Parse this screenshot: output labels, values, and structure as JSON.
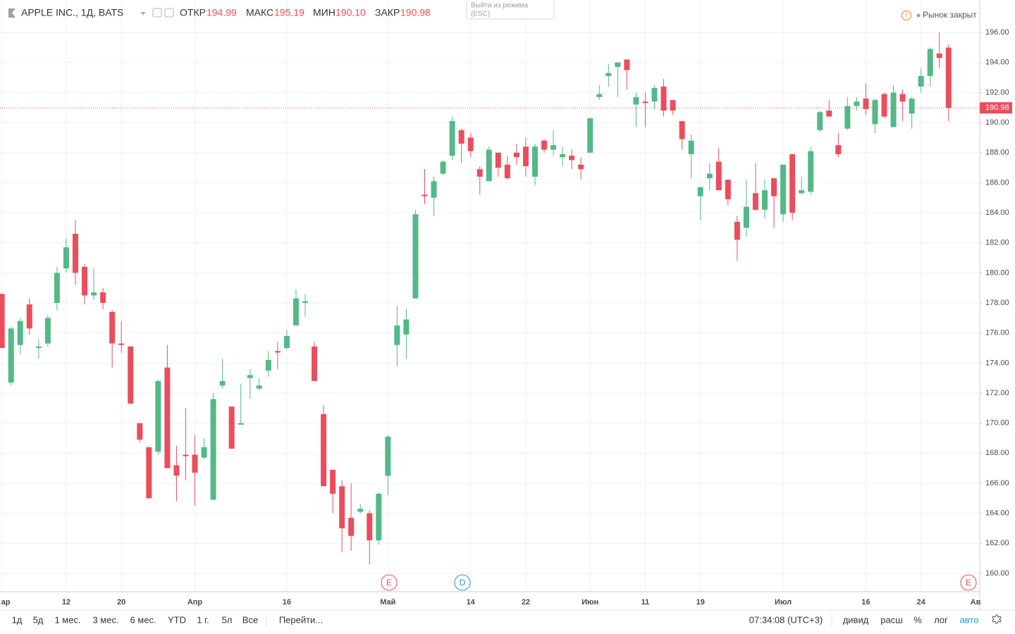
{
  "header": {
    "symbol": "APPLE INC., 1Д, BATS",
    "ohlc": [
      {
        "label": "ОТКР",
        "value": "194.99"
      },
      {
        "label": "МАКС",
        "value": "195.19"
      },
      {
        "label": "МИН",
        "value": "190.10"
      },
      {
        "label": "ЗАКР",
        "value": "190.98"
      }
    ],
    "tooltip": [
      "Выйти из режима",
      "(ESC)"
    ],
    "market_status": "Рынок закрыт"
  },
  "toolbar": {
    "ranges": [
      "1д",
      "5д",
      "1 мес.",
      "3 мес.",
      "6 мес.",
      "YTD",
      "1 г.",
      "5л",
      "Все",
      "Перейти..."
    ],
    "time": "07:34:08 (UTC+3)",
    "options": [
      "дивид",
      "расш",
      "%",
      "лог",
      "авто"
    ]
  },
  "chart_data": {
    "type": "candlestick",
    "up_color": "#53b987",
    "down_color": "#eb4d5c",
    "grid": true,
    "categories": [
      "ар",
      null,
      null,
      null,
      null,
      null,
      null,
      "12",
      null,
      null,
      null,
      null,
      null,
      "20",
      null,
      null,
      null,
      null,
      null,
      null,
      null,
      "Апр",
      null,
      null,
      null,
      null,
      null,
      null,
      null,
      null,
      null,
      "16",
      null,
      null,
      null,
      null,
      null,
      null,
      null,
      null,
      null,
      null,
      "Май",
      null,
      null,
      null,
      null,
      null,
      null,
      null,
      null,
      "14",
      null,
      null,
      null,
      null,
      null,
      "22",
      null,
      null,
      null,
      null,
      null,
      null,
      "Июн",
      null,
      null,
      null,
      null,
      null,
      "11",
      null,
      null,
      null,
      null,
      null,
      "19",
      null,
      null,
      null,
      null,
      null,
      null,
      null,
      null,
      "Июл",
      null,
      null,
      null,
      null,
      null,
      null,
      null,
      null,
      "16",
      null,
      null,
      null,
      null,
      null,
      "24",
      null,
      null,
      null
    ],
    "x_end_label": "Ав",
    "open": [
      178.6,
      172.7,
      175.2,
      177.9,
      175.0,
      175.3,
      178.0,
      180.3,
      182.6,
      180.4,
      178.5,
      178.7,
      177.4,
      175.3,
      175.1,
      170.0,
      168.4,
      168.1,
      173.7,
      167.2,
      167.9,
      167.9,
      167.7,
      164.9,
      172.5,
      171.1,
      169.9,
      173.0,
      172.3,
      173.5,
      174.8,
      175.0,
      176.5,
      178.0,
      175.1,
      170.6,
      166.9,
      165.8,
      163.7,
      164.1,
      164.0,
      162.2,
      166.5,
      175.2,
      175.9,
      178.3,
      185.2,
      185.0,
      186.6,
      187.8,
      189.5,
      189.0,
      186.9,
      186.1,
      188.0,
      187.2,
      188.0,
      188.4,
      186.4,
      188.8,
      188.2,
      187.7,
      187.8,
      187.2,
      188.0,
      191.7,
      193.1,
      193.7,
      194.2,
      191.2,
      191.4,
      191.4,
      192.4,
      191.5,
      190.1,
      187.9,
      185.1,
      186.3,
      187.4,
      186.2,
      183.4,
      183.0,
      185.3,
      184.2,
      186.3,
      183.9,
      187.9,
      185.3,
      185.4,
      189.5,
      190.8,
      188.5,
      189.6,
      191.1,
      191.6,
      189.9,
      191.9,
      189.7,
      191.9,
      190.6,
      192.4,
      193.1,
      194.6,
      194.99
    ],
    "high": [
      178.6,
      176.4,
      177.0,
      178.3,
      175.6,
      177.2,
      180.4,
      182.3,
      183.5,
      180.6,
      180.3,
      179.0,
      177.5,
      176.8,
      175.1,
      170.0,
      168.4,
      172.9,
      175.2,
      168.5,
      171.0,
      169.2,
      169.0,
      172.0,
      174.3,
      171.1,
      172.6,
      173.6,
      173.0,
      174.8,
      175.4,
      176.2,
      178.9,
      178.6,
      175.4,
      171.2,
      166.9,
      166.2,
      166.0,
      164.6,
      164.2,
      165.4,
      169.2,
      177.8,
      177.6,
      184.2,
      186.9,
      186.4,
      187.5,
      190.4,
      189.6,
      189.3,
      187.1,
      188.4,
      188.0,
      187.8,
      188.6,
      189.0,
      188.6,
      188.9,
      189.5,
      188.4,
      188.2,
      187.7,
      190.3,
      192.5,
      193.9,
      194.0,
      194.2,
      192.0,
      192.0,
      192.5,
      192.9,
      191.5,
      190.1,
      189.2,
      185.7,
      187.3,
      188.3,
      186.2,
      183.8,
      186.2,
      187.3,
      186.2,
      186.3,
      187.2,
      187.9,
      186.4,
      188.4,
      190.8,
      191.5,
      189.3,
      191.7,
      191.7,
      192.6,
      191.6,
      192.0,
      192.5,
      192.2,
      191.7,
      193.6,
      195.0,
      196.0,
      195.19
    ],
    "low": [
      175.0,
      172.5,
      174.6,
      175.9,
      174.3,
      175.1,
      177.5,
      180.0,
      179.2,
      177.9,
      178.2,
      177.6,
      173.7,
      174.7,
      171.3,
      168.7,
      165.0,
      167.9,
      167.0,
      164.8,
      166.2,
      164.5,
      167.6,
      164.9,
      172.3,
      168.3,
      169.9,
      171.6,
      172.2,
      173.1,
      173.6,
      174.9,
      176.5,
      177.1,
      172.8,
      165.8,
      164.0,
      161.4,
      161.5,
      164.0,
      160.6,
      161.9,
      165.2,
      173.8,
      174.3,
      178.3,
      184.6,
      183.8,
      186.5,
      187.5,
      187.3,
      187.7,
      185.2,
      186.1,
      186.4,
      186.2,
      187.2,
      186.4,
      185.8,
      188.0,
      187.8,
      187.1,
      186.9,
      186.2,
      188.0,
      191.5,
      192.4,
      191.7,
      192.2,
      189.7,
      189.7,
      190.9,
      190.4,
      190.5,
      188.2,
      186.3,
      183.5,
      185.5,
      185.5,
      184.5,
      180.8,
      182.4,
      184.1,
      183.6,
      183.0,
      183.4,
      183.5,
      185.2,
      185.2,
      189.4,
      190.4,
      187.7,
      189.5,
      190.8,
      190.5,
      189.3,
      190.3,
      189.7,
      190.1,
      189.6,
      192.0,
      192.4,
      193.6,
      190.1
    ],
    "close": [
      175.0,
      176.3,
      176.8,
      176.3,
      175.1,
      177.0,
      180.0,
      181.7,
      180.0,
      178.5,
      178.7,
      178.0,
      175.3,
      175.2,
      171.3,
      168.9,
      165.0,
      172.8,
      167.0,
      166.5,
      167.8,
      166.7,
      168.4,
      171.6,
      172.8,
      168.3,
      170.0,
      173.2,
      172.5,
      174.2,
      174.7,
      175.8,
      178.3,
      178.1,
      172.8,
      165.8,
      165.3,
      163.0,
      162.5,
      164.3,
      162.2,
      165.3,
      169.1,
      176.5,
      176.9,
      183.9,
      185.1,
      186.1,
      187.4,
      190.1,
      188.6,
      188.1,
      186.4,
      188.2,
      187.0,
      186.3,
      187.7,
      187.1,
      188.4,
      188.2,
      188.5,
      187.9,
      187.5,
      186.9,
      190.3,
      191.9,
      193.3,
      194.0,
      193.5,
      191.7,
      191.3,
      192.3,
      190.8,
      190.8,
      188.9,
      188.8,
      185.7,
      186.6,
      185.5,
      184.9,
      182.2,
      184.4,
      184.2,
      185.5,
      185.1,
      187.2,
      184.0,
      185.5,
      188.1,
      190.7,
      190.4,
      187.9,
      191.1,
      191.4,
      190.9,
      191.5,
      190.4,
      192.0,
      191.4,
      191.6,
      193.1,
      194.9,
      194.3,
      190.98
    ],
    "last_price": {
      "value": 190.98,
      "label": "190.98",
      "color": "#eb4d5c"
    },
    "ylim": [
      158.78,
      198.16
    ],
    "yticks": [
      {
        "value": 160,
        "label": "160.00"
      },
      {
        "value": 162,
        "label": "162.00"
      },
      {
        "value": 164,
        "label": "164.00"
      },
      {
        "value": 166,
        "label": "166.00"
      },
      {
        "value": 168,
        "label": "168.00"
      },
      {
        "value": 170,
        "label": "170.00"
      },
      {
        "value": 172,
        "label": "172.00"
      },
      {
        "value": 174,
        "label": "174.00"
      },
      {
        "value": 176,
        "label": "176.00"
      },
      {
        "value": 178,
        "label": "178.00"
      },
      {
        "value": 180,
        "label": "180.00"
      },
      {
        "value": 182,
        "label": "182.00"
      },
      {
        "value": 184,
        "label": "184.00"
      },
      {
        "value": 186,
        "label": "186.00"
      },
      {
        "value": 188,
        "label": "188.00"
      },
      {
        "value": 190,
        "label": "190.00"
      },
      {
        "value": 192,
        "label": "192.00"
      },
      {
        "value": 194,
        "label": "194.00"
      },
      {
        "value": 196,
        "label": "196.00"
      }
    ],
    "events": [
      {
        "label": "E",
        "color": "#eb4d5c"
      },
      {
        "label": "D",
        "color": "#2196f3"
      },
      {
        "label": "E",
        "color": "#eb4d5c"
      }
    ]
  }
}
